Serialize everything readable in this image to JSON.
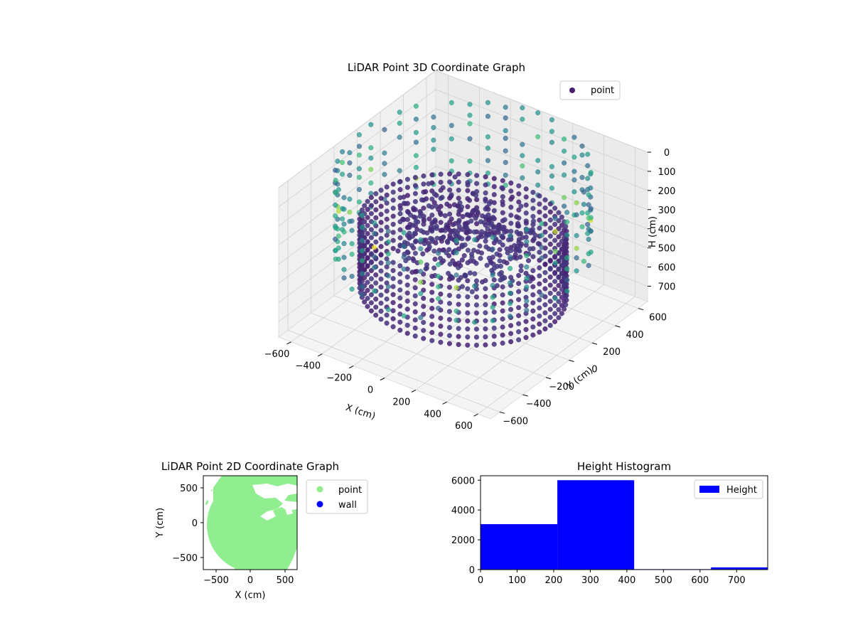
{
  "chart_data": [
    {
      "type": "scatter",
      "projection": "3d",
      "title": "LiDAR Point 3D Coordinate Graph",
      "xlabel": "X (cm)",
      "ylabel": "Y (cm)",
      "zlabel": "H (cm)",
      "xlim": [
        -680,
        680
      ],
      "ylim": [
        -680,
        680
      ],
      "zlim": [
        0,
        780
      ],
      "z_inverted": true,
      "xticks": [
        "−600",
        "−400",
        "−200",
        "0",
        "200",
        "400",
        "600"
      ],
      "yticks": [
        "−600",
        "−400",
        "−200",
        "0",
        "200",
        "400",
        "600"
      ],
      "zticks": [
        "0",
        "100",
        "200",
        "300",
        "400",
        "500",
        "600",
        "700"
      ],
      "legend": {
        "position": "top-right",
        "entries": [
          {
            "label": "point",
            "color": "#481f70"
          }
        ]
      },
      "colormap": "viridis",
      "grid": true,
      "wall_radius": 560,
      "wall_height_range": [
        300,
        640
      ],
      "outer_post_radius": 660,
      "outer_post_height_range": [
        0,
        420
      ]
    },
    {
      "type": "scatter",
      "title": "LiDAR Point 2D Coordinate Graph",
      "xlabel": "X (cm)",
      "ylabel": "Y (cm)",
      "xlim": [
        -680,
        680
      ],
      "ylim": [
        -680,
        680
      ],
      "xticks": [
        "−500",
        "0",
        "500"
      ],
      "yticks": [
        "−500",
        "0",
        "500"
      ],
      "legend": {
        "position": "outside-right",
        "entries": [
          {
            "label": "point",
            "color": "#90ee90"
          },
          {
            "label": "wall",
            "color": "#0000ff"
          }
        ]
      }
    },
    {
      "type": "bar",
      "title": "Height Histogram",
      "bins": [
        {
          "from": 0,
          "to": 210,
          "count": 3050
        },
        {
          "from": 210,
          "to": 420,
          "count": 6000
        },
        {
          "from": 420,
          "to": 630,
          "count": 30
        },
        {
          "from": 630,
          "to": 840,
          "count": 150
        }
      ],
      "xlim": [
        0,
        785
      ],
      "ylim": [
        0,
        6300
      ],
      "xticks": [
        0,
        100,
        200,
        300,
        400,
        500,
        600,
        700
      ],
      "yticks": [
        0,
        2000,
        4000,
        6000
      ],
      "legend": {
        "position": "top-right",
        "entries": [
          {
            "label": "Height",
            "color": "#0000ff"
          }
        ]
      },
      "bar_color": "#0000ff"
    }
  ]
}
